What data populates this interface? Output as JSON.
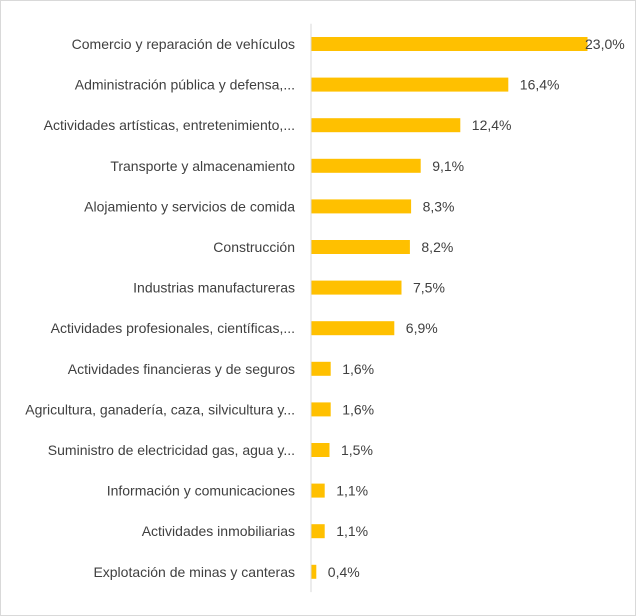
{
  "chart_data": {
    "type": "bar",
    "orientation": "horizontal",
    "title": "",
    "xlabel": "",
    "ylabel": "",
    "grid": false,
    "legend": "none",
    "unit": "%",
    "xlim": [
      0,
      23
    ],
    "bar_color": "#FFC000",
    "categories": [
      "Comercio y reparación de vehículos",
      "Administración pública y defensa,...",
      "Actividades artísticas, entretenimiento,...",
      "Transporte y almacenamiento",
      "Alojamiento y servicios de comida",
      "Construcción",
      "Industrias manufactureras",
      "Actividades profesionales, científicas,...",
      "Actividades financieras y de seguros",
      "Agricultura, ganadería, caza, silvicultura y...",
      "Suministro de electricidad gas, agua y...",
      "Información y comunicaciones",
      "Actividades inmobiliarias",
      "Explotación de minas y canteras"
    ],
    "values": [
      23.0,
      16.4,
      12.4,
      9.1,
      8.3,
      8.2,
      7.5,
      6.9,
      1.6,
      1.6,
      1.5,
      1.1,
      1.1,
      0.4
    ],
    "data_labels": [
      "23,0%",
      "16,4%",
      "12,4%",
      "9,1%",
      "8,3%",
      "8,2%",
      "7,5%",
      "6,9%",
      "1,6%",
      "1,6%",
      "1,5%",
      "1,1%",
      "1,1%",
      "0,4%"
    ]
  }
}
